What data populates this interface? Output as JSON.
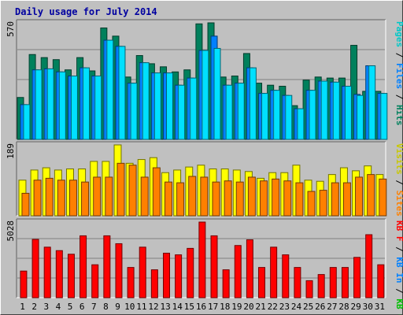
{
  "chart_data": {
    "type": "bar",
    "title": "Daily usage for July 2014",
    "categories": [
      "1",
      "2",
      "3",
      "4",
      "5",
      "6",
      "7",
      "8",
      "9",
      "10",
      "11",
      "12",
      "13",
      "14",
      "15",
      "16",
      "17",
      "18",
      "19",
      "20",
      "21",
      "22",
      "23",
      "24",
      "25",
      "26",
      "27",
      "28",
      "29",
      "30",
      "31"
    ],
    "weekend_days": [
      "5",
      "6",
      "12",
      "13",
      "19",
      "20",
      "26",
      "27"
    ],
    "panels": [
      {
        "name": "pages-files-hits",
        "ymax": 570,
        "ymax_label": "570",
        "grid": true,
        "series": [
          {
            "name": "Hits",
            "color": "#00805c",
            "values": [
              205,
              415,
              400,
              390,
              340,
              400,
              335,
              545,
              505,
              305,
              410,
              370,
              355,
              330,
              340,
              565,
              570,
              305,
              310,
              420,
              275,
              265,
              260,
              165,
              290,
              305,
              300,
              300,
              460,
              235,
              235
            ]
          },
          {
            "name": "Files",
            "color": "#0080ff",
            "values": [
              170,
              340,
              345,
              330,
              310,
              350,
              310,
              485,
              455,
              275,
              375,
              325,
              325,
              265,
              300,
              435,
              505,
              265,
              275,
              350,
              225,
              240,
              215,
              150,
              240,
              285,
              280,
              260,
              220,
              360,
              225
            ]
          },
          {
            "name": "Pages",
            "color": "#00e0ff",
            "values": [
              170,
              340,
              345,
              330,
              310,
              350,
              310,
              485,
              455,
              275,
              375,
              325,
              325,
              265,
              300,
              435,
              445,
              265,
              275,
              350,
              225,
              240,
              215,
              150,
              240,
              285,
              280,
              260,
              215,
              360,
              225
            ]
          }
        ]
      },
      {
        "name": "visits-sites",
        "ymax": 189,
        "ymax_label": "189",
        "grid": false,
        "series": [
          {
            "name": "Visits",
            "color": "#ffff00",
            "values": [
              95,
              122,
              128,
              122,
              125,
              125,
              145,
              145,
              189,
              140,
              150,
              155,
              115,
              122,
              130,
              135,
              125,
              125,
              122,
              118,
              100,
              115,
              115,
              135,
              95,
              92,
              110,
              128,
              120,
              133,
              110
            ]
          },
          {
            "name": "Sites",
            "color": "#ff8000",
            "values": [
              60,
              95,
              100,
              95,
              95,
              90,
              103,
              103,
              140,
              135,
              103,
              128,
              90,
              88,
              105,
              103,
              90,
              93,
              90,
              103,
              93,
              98,
              93,
              88,
              65,
              68,
              88,
              88,
              103,
              110,
              98
            ]
          }
        ]
      },
      {
        "name": "kbf",
        "ymax": 5028,
        "ymax_label": "5028",
        "grid": true,
        "series": [
          {
            "name": "KB F",
            "color": "#ff0000",
            "values": [
              1770,
              3875,
              3360,
              3130,
              2890,
              4115,
              2190,
              4115,
              3590,
              2010,
              3360,
              1855,
              2960,
              2850,
              3280,
              5028,
              4115,
              1855,
              3470,
              3850,
              2010,
              3360,
              2850,
              2010,
              1130,
              1540,
              2010,
              2010,
              2680,
              4190,
              2190
            ]
          }
        ]
      }
    ],
    "right_labels": [
      {
        "text": "Pages",
        "color": "#00c8c8"
      },
      {
        "text": " / ",
        "color": "#000000"
      },
      {
        "text": "Files",
        "color": "#0080ff"
      },
      {
        "text": " / ",
        "color": "#000000"
      },
      {
        "text": "Hits",
        "color": "#00805c"
      },
      {
        "text": "Visits",
        "color": "#c8c800"
      },
      {
        "text": " / ",
        "color": "#000000"
      },
      {
        "text": "Sites",
        "color": "#ff8000"
      },
      {
        "text": "KB F",
        "color": "#ff0000"
      },
      {
        "text": " / ",
        "color": "#000000"
      },
      {
        "text": "KB In",
        "color": "#0080ff"
      },
      {
        "text": " / ",
        "color": "#000000"
      },
      {
        "text": "KB Out",
        "color": "#00c000"
      }
    ],
    "colors": {
      "weekday_tick": "#000000",
      "weekend_tick": "#00805c",
      "panel_bg": "#c0c0c0",
      "grid": "#808080",
      "title": "#0000a0"
    }
  }
}
